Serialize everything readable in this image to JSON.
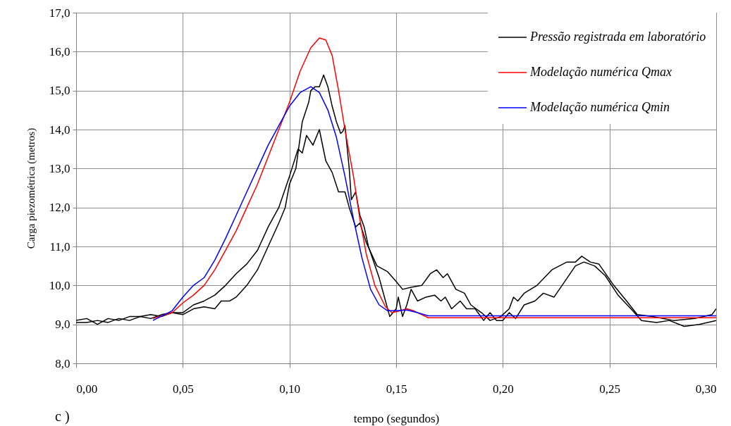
{
  "chart_data": {
    "type": "line",
    "xlabel": "tempo (segundos)",
    "ylabel": "Carga piezométrica (metros)",
    "xlim": [
      0,
      0.3
    ],
    "ylim": [
      8,
      17
    ],
    "xticks": [
      {
        "value": 0,
        "label": "0,00"
      },
      {
        "value": 0.05,
        "label": "0,05"
      },
      {
        "value": 0.1,
        "label": "0,10"
      },
      {
        "value": 0.15,
        "label": "0,15"
      },
      {
        "value": 0.2,
        "label": "0,20"
      },
      {
        "value": 0.25,
        "label": "0,25"
      },
      {
        "value": 0.3,
        "label": "0,30"
      }
    ],
    "yticks": [
      {
        "value": 8,
        "label": "8,0"
      },
      {
        "value": 9,
        "label": "9,0"
      },
      {
        "value": 10,
        "label": "10,0"
      },
      {
        "value": 11,
        "label": "11,0"
      },
      {
        "value": 12,
        "label": "12,0"
      },
      {
        "value": 13,
        "label": "13,0"
      },
      {
        "value": 14,
        "label": "14,0"
      },
      {
        "value": 15,
        "label": "15,0"
      },
      {
        "value": 16,
        "label": "16,0"
      },
      {
        "value": 17,
        "label": "17,0"
      }
    ],
    "grid": true,
    "legend": "top right",
    "annotations": [
      "c )"
    ],
    "series": [
      {
        "name": "Pressão registrada em laboratório",
        "color": "#000000",
        "x": [
          0,
          0.005,
          0.01,
          0.015,
          0.02,
          0.025,
          0.03,
          0.035,
          0.04,
          0.045,
          0.05,
          0.055,
          0.06,
          0.065,
          0.068,
          0.072,
          0.075,
          0.08,
          0.085,
          0.09,
          0.095,
          0.098,
          0.1,
          0.103,
          0.106,
          0.109,
          0.11,
          0.112,
          0.114,
          0.116,
          0.118,
          0.12,
          0.122,
          0.124,
          0.125,
          0.126,
          0.128,
          0.129,
          0.131,
          0.133,
          0.135,
          0.137,
          0.142,
          0.145,
          0.147,
          0.15,
          0.151,
          0.153,
          0.155,
          0.157,
          0.16,
          0.164,
          0.168,
          0.171,
          0.173,
          0.176,
          0.18,
          0.183,
          0.187,
          0.191,
          0.194,
          0.197,
          0.2,
          0.203,
          0.206,
          0.21,
          0.215,
          0.219,
          0.224,
          0.229,
          0.234,
          0.238,
          0.243,
          0.248,
          0.254,
          0.26,
          0.265,
          0.272,
          0.278,
          0.285,
          0.292,
          0.3
        ],
        "values": [
          9.05,
          9.05,
          9.1,
          9.05,
          9.15,
          9.1,
          9.2,
          9.15,
          9.25,
          9.3,
          9.25,
          9.4,
          9.45,
          9.4,
          9.6,
          9.6,
          9.7,
          10.0,
          10.4,
          11.0,
          11.6,
          12.0,
          12.6,
          13.0,
          14.2,
          14.7,
          15.0,
          15.1,
          15.1,
          15.4,
          15.1,
          14.6,
          14.2,
          13.9,
          13.95,
          14.1,
          13.0,
          12.2,
          12.4,
          11.8,
          11.5,
          11.0,
          10.2,
          9.6,
          9.2,
          9.4,
          9.7,
          9.2,
          9.5,
          9.9,
          9.6,
          9.7,
          9.75,
          9.6,
          9.7,
          9.4,
          9.6,
          9.4,
          9.4,
          9.1,
          9.3,
          9.1,
          9.1,
          9.3,
          9.15,
          9.5,
          9.6,
          9.8,
          9.7,
          10.1,
          10.5,
          10.6,
          10.5,
          10.25,
          9.75,
          9.4,
          9.1,
          9.05,
          9.1,
          8.95,
          9.0,
          9.1
        ]
      },
      {
        "color": "#000000",
        "x": [
          0,
          0.005,
          0.01,
          0.015,
          0.02,
          0.025,
          0.03,
          0.035,
          0.04,
          0.045,
          0.05,
          0.055,
          0.06,
          0.065,
          0.07,
          0.075,
          0.08,
          0.085,
          0.09,
          0.095,
          0.1,
          0.104,
          0.106,
          0.108,
          0.111,
          0.114,
          0.117,
          0.12,
          0.123,
          0.126,
          0.128,
          0.131,
          0.133,
          0.136,
          0.141,
          0.146,
          0.15,
          0.153,
          0.157,
          0.162,
          0.166,
          0.169,
          0.172,
          0.174,
          0.178,
          0.182,
          0.185,
          0.19,
          0.194,
          0.199,
          0.203,
          0.205,
          0.207,
          0.21,
          0.216,
          0.223,
          0.23,
          0.234,
          0.237,
          0.241,
          0.245,
          0.252,
          0.258,
          0.263,
          0.27,
          0.28,
          0.29,
          0.298,
          0.3
        ],
        "values": [
          9.1,
          9.15,
          9.0,
          9.15,
          9.1,
          9.2,
          9.2,
          9.25,
          9.2,
          9.3,
          9.3,
          9.5,
          9.6,
          9.75,
          10.0,
          10.3,
          10.55,
          10.9,
          11.5,
          12.0,
          12.8,
          13.5,
          13.4,
          13.85,
          13.6,
          14.0,
          13.2,
          12.9,
          12.4,
          12.4,
          12.0,
          11.5,
          11.6,
          11.1,
          10.5,
          10.35,
          10.1,
          9.9,
          9.95,
          10.0,
          10.3,
          10.4,
          10.2,
          10.3,
          9.9,
          9.8,
          9.5,
          9.3,
          9.1,
          9.2,
          9.4,
          9.7,
          9.6,
          9.8,
          10.0,
          10.4,
          10.6,
          10.6,
          10.75,
          10.6,
          10.55,
          10.0,
          9.6,
          9.25,
          9.2,
          9.1,
          9.15,
          9.25,
          9.4
        ]
      },
      {
        "name": "Modelação numérica Qmax",
        "color": "#ff0000",
        "x": [
          0.036,
          0.045,
          0.05,
          0.055,
          0.06,
          0.065,
          0.07,
          0.075,
          0.08,
          0.085,
          0.09,
          0.095,
          0.1,
          0.105,
          0.11,
          0.114,
          0.117,
          0.12,
          0.123,
          0.126,
          0.13,
          0.133,
          0.136,
          0.14,
          0.145,
          0.148,
          0.152,
          0.155,
          0.158,
          0.162,
          0.165,
          0.175,
          0.185,
          0.3
        ],
        "values": [
          9.15,
          9.3,
          9.55,
          9.75,
          10.0,
          10.4,
          10.9,
          11.4,
          12.0,
          12.6,
          13.3,
          14.0,
          14.7,
          15.5,
          16.1,
          16.35,
          16.3,
          15.9,
          15.0,
          14.0,
          12.8,
          11.7,
          10.8,
          10.0,
          9.45,
          9.3,
          9.35,
          9.4,
          9.35,
          9.25,
          9.17,
          9.17,
          9.17,
          9.17
        ]
      },
      {
        "name": "Modelação numérica Qmin",
        "color": "#0000ff",
        "x": [
          0.036,
          0.045,
          0.05,
          0.055,
          0.06,
          0.065,
          0.07,
          0.075,
          0.08,
          0.085,
          0.09,
          0.095,
          0.1,
          0.105,
          0.11,
          0.114,
          0.118,
          0.122,
          0.126,
          0.13,
          0.134,
          0.138,
          0.142,
          0.146,
          0.15,
          0.155,
          0.16,
          0.165,
          0.3
        ],
        "values": [
          9.1,
          9.35,
          9.7,
          10.0,
          10.2,
          10.65,
          11.2,
          11.8,
          12.4,
          13.0,
          13.6,
          14.1,
          14.6,
          14.95,
          15.1,
          14.95,
          14.5,
          13.8,
          12.8,
          11.7,
          10.7,
          9.9,
          9.5,
          9.35,
          9.35,
          9.37,
          9.3,
          9.22,
          9.22
        ]
      }
    ]
  }
}
